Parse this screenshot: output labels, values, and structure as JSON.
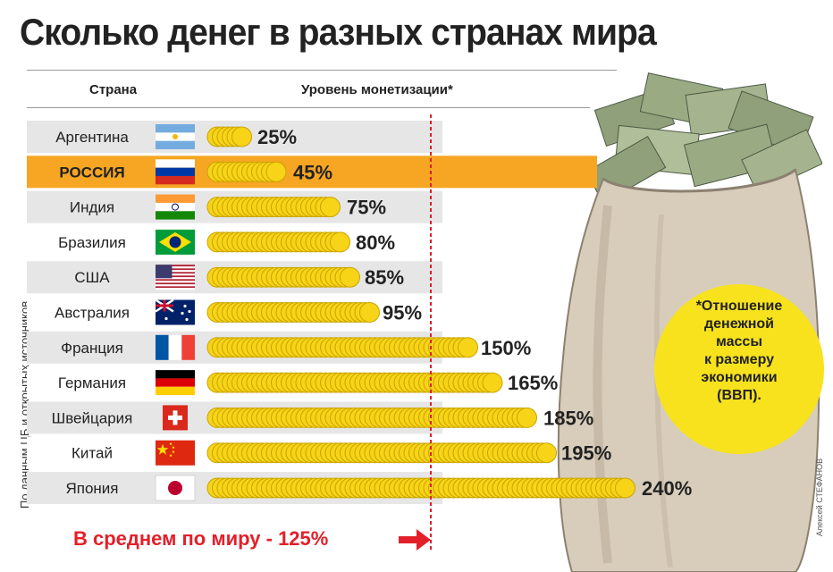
{
  "header": {
    "title": "Сколько денег в разных странах мира",
    "col_country": "Страна",
    "col_level": "Уровень монетизации*"
  },
  "side_note": "По данным ЦБ и открытых источников.",
  "author": "Алексей СТЕФАНОВ",
  "footnote": "*Отношение\nденежной\nмассы\nк размеру\nэкономики\n(ВВП).",
  "average_note": "В среднем по миру - 125%",
  "colors": {
    "highlight": "#f6a623",
    "stripe": "#e6e6e6",
    "coin_fill": "#f7d417",
    "coin_edge": "#c9a400",
    "reference_line": "#d9232d",
    "accent_red": "#e3202a",
    "footnote_circle": "#f7e21d"
  },
  "chart_data": {
    "type": "bar",
    "unit": "%",
    "categories": [
      "Аргентина",
      "РОССИЯ",
      "Индия",
      "Бразилия",
      "США",
      "Австралия",
      "Франция",
      "Германия",
      "Швейцария",
      "Китай",
      "Япония"
    ],
    "values": [
      25,
      45,
      75,
      80,
      85,
      95,
      150,
      165,
      185,
      195,
      240
    ],
    "labels": [
      "25%",
      "45%",
      "75%",
      "80%",
      "85%",
      "95%",
      "150%",
      "165%",
      "185%",
      "195%",
      "240%"
    ],
    "flags": [
      "argentina-flag",
      "russia-flag",
      "india-flag",
      "brazil-flag",
      "usa-flag",
      "australia-flag",
      "france-flag",
      "germany-flag",
      "switzerland-flag",
      "china-flag",
      "japan-flag"
    ],
    "highlighted": "РОССИЯ",
    "reference_line": 125,
    "xlim": [
      0,
      240
    ],
    "bar_style": "stacked coins"
  }
}
